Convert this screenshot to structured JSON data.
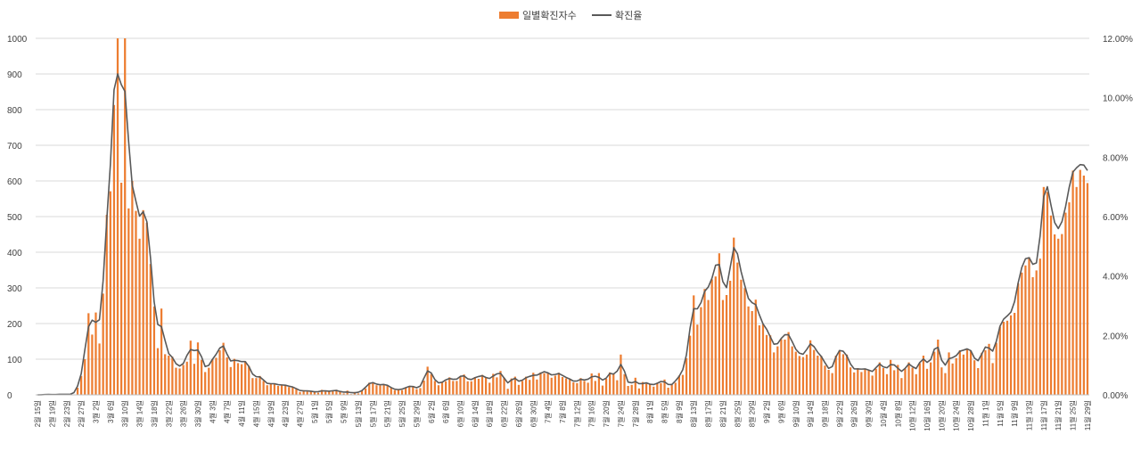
{
  "chart_data": {
    "type": "bar+line",
    "legend": {
      "position": "top",
      "bar_label": "일별확진자수",
      "line_label": "확진율"
    },
    "colors": {
      "bar": "#ED7D31",
      "line": "#595959",
      "grid": "#D9D9D9",
      "axis": "#BFBFBF"
    },
    "y_left": {
      "min": 0,
      "max": 1000,
      "ticks": [
        "0",
        "100",
        "200",
        "300",
        "400",
        "500",
        "600",
        "700",
        "800",
        "900",
        "1000"
      ]
    },
    "y_right": {
      "min": 0,
      "max": 12,
      "ticks": [
        "0.00%",
        "2.00%",
        "4.00%",
        "6.00%",
        "8.00%",
        "10.00%",
        "12.00%"
      ]
    },
    "x_labels": [
      "2월 15일",
      "2월 19일",
      "2월 23일",
      "2월 27일",
      "3월 2일",
      "3월 6일",
      "3월 10일",
      "3월 14일",
      "3월 18일",
      "3월 22일",
      "3월 26일",
      "3월 30일",
      "4월 3일",
      "4월 7일",
      "4월 11일",
      "4월 15일",
      "4월 19일",
      "4월 23일",
      "4월 27일",
      "5월 1일",
      "5월 5일",
      "5월 9일",
      "5월 13일",
      "5월 17일",
      "5월 21일",
      "5월 25일",
      "5월 29일",
      "6월 2일",
      "6월 6일",
      "6월 10일",
      "6월 14일",
      "6월 18일",
      "6월 22일",
      "6월 26일",
      "6월 30일",
      "7월 4일",
      "7월 8일",
      "7월 12일",
      "7월 16일",
      "7월 20일",
      "7월 24일",
      "7월 28일",
      "8월 1일",
      "8월 5일",
      "8월 9일",
      "8월 13일",
      "8월 17일",
      "8월 21일",
      "8월 25일",
      "8월 29일",
      "9월 2일",
      "9월 6일",
      "9월 10일",
      "9월 14일",
      "9월 18일",
      "9월 22일",
      "9월 26일",
      "9월 30일",
      "10월 4일",
      "10월 8일",
      "10월 12일",
      "10월 16일",
      "10월 20일",
      "10월 24일",
      "10월 28일",
      "11월 1일",
      "11월 5일",
      "11월 9일",
      "11월 13일",
      "11월 17일",
      "11월 21일",
      "11월 25일",
      "11월 29일",
      "12월 3일",
      "12월 7일"
    ],
    "label_step_days": 4,
    "daily_cases": [
      0,
      0,
      1,
      1,
      1,
      0,
      2,
      1,
      1,
      2,
      1,
      20,
      53,
      100,
      229,
      169,
      231,
      144,
      284,
      505,
      571,
      813,
      1062,
      595,
      1062,
      523,
      600,
      516,
      438,
      518,
      483,
      367,
      248,
      131,
      242,
      114,
      110,
      107,
      76,
      74,
      84,
      93,
      152,
      87,
      147,
      98,
      64,
      76,
      100,
      104,
      125,
      146,
      105,
      78,
      101,
      89,
      86,
      94,
      81,
      47,
      47,
      53,
      39,
      27,
      30,
      32,
      25,
      27,
      27,
      22,
      22,
      18,
      8,
      13,
      9,
      11,
      8,
      6,
      14,
      9,
      10,
      10,
      14,
      9,
      4,
      12,
      2,
      8,
      4,
      12,
      18,
      34,
      35,
      27,
      26,
      29,
      27,
      19,
      13,
      15,
      13,
      20,
      23,
      25,
      16,
      19,
      40,
      79,
      58,
      39,
      27,
      35,
      38,
      49,
      39,
      39,
      51,
      57,
      38,
      38,
      50,
      45,
      56,
      48,
      34,
      59,
      49,
      67,
      48,
      17,
      46,
      51,
      28,
      39,
      51,
      42,
      62,
      43,
      63,
      61,
      63,
      48,
      54,
      62,
      50,
      46,
      44,
      35,
      33,
      47,
      39,
      34,
      60,
      39,
      61,
      26,
      45,
      63,
      59,
      41,
      113,
      58,
      25,
      28,
      48,
      18,
      36,
      31,
      30,
      23,
      34,
      33,
      43,
      20,
      28,
      34,
      54,
      56,
      103,
      166,
      279,
      197,
      246,
      297,
      266,
      324,
      332,
      397,
      266,
      280,
      320,
      441,
      371,
      323,
      299,
      248,
      235,
      267,
      195,
      198,
      168,
      167,
      119,
      136,
      156,
      155,
      176,
      136,
      121,
      109,
      106,
      113,
      153,
      126,
      110,
      109,
      82,
      70,
      61,
      110,
      125,
      114,
      113,
      77,
      63,
      75,
      64,
      72,
      69,
      54,
      73,
      91,
      75,
      58,
      98,
      69,
      84,
      47,
      73,
      91,
      76,
      58,
      89,
      110,
      73,
      91,
      121,
      155,
      77,
      61,
      119,
      88,
      103,
      125,
      113,
      127,
      124,
      97,
      75,
      118,
      125,
      143,
      89,
      146,
      191,
      205,
      208,
      223,
      230,
      313,
      343,
      363,
      386,
      330,
      349,
      382,
      583,
      569,
      503,
      450,
      438,
      451,
      511,
      540,
      629,
      583,
      631,
      615,
      594
    ]
  }
}
